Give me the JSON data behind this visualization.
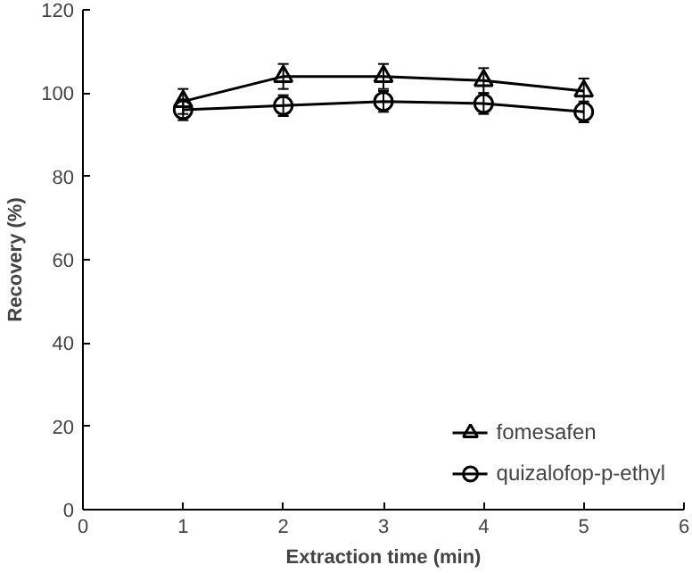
{
  "chart_data": {
    "type": "line",
    "xlabel": "Extraction time (min)",
    "ylabel": "Recovery (%)",
    "x": [
      1,
      2,
      3,
      4,
      5
    ],
    "series": [
      {
        "name": "fomesafen",
        "color": "#000000",
        "marker": "triangle",
        "values": [
          98,
          104,
          104,
          103,
          100.5
        ],
        "errors": [
          3,
          3,
          3,
          3,
          3
        ]
      },
      {
        "name": "quizalofop-p-ethyl",
        "color": "#000000",
        "marker": "circle",
        "values": [
          96,
          97,
          98,
          97.5,
          95.5
        ],
        "errors": [
          2.5,
          2.5,
          2.5,
          2.5,
          2.5
        ]
      }
    ],
    "xlim": [
      0,
      6
    ],
    "xticks": [
      0,
      1,
      2,
      3,
      4,
      5,
      6
    ],
    "ylim": [
      0,
      120
    ],
    "yticks": [
      0,
      20,
      40,
      60,
      80,
      100,
      120
    ],
    "legend": "bottom right",
    "grid": false
  }
}
